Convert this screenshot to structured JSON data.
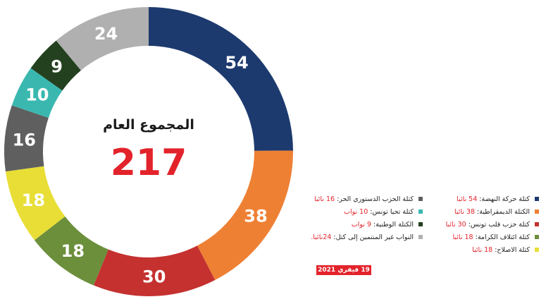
{
  "chart_data": {
    "type": "pie",
    "donut": true,
    "center_title": "المجموع العام",
    "center_total": "217",
    "slices": [
      {
        "label": "كتلة حركة النهضة",
        "value": 54,
        "color": "#1c3a6e"
      },
      {
        "label": "الكتلة الديمقراطية",
        "value": 38,
        "color": "#ee8034"
      },
      {
        "label": "كتلة حزب قلب تونس",
        "value": 30,
        "color": "#c4312f"
      },
      {
        "label": "كتلة ائتلاف الكرامة",
        "value": 18,
        "color": "#6c8f3c"
      },
      {
        "label": "كتلة الاصلاح",
        "value": 18,
        "color": "#e8de36"
      },
      {
        "label": "كتلة الحزب الدستوري الحر",
        "value": 16,
        "color": "#5f5f5f"
      },
      {
        "label": "كتلة تحيا تونس",
        "value": 10,
        "color": "#3ab8b0"
      },
      {
        "label": "الكتلة الوطنية",
        "value": 9,
        "color": "#23401f"
      },
      {
        "label": "النواب غير المنتمين إلى كتل",
        "value": 24,
        "color": "#b0b0b0"
      }
    ]
  },
  "legend": {
    "right": [
      {
        "text": "كتلة حركة النهضة: ",
        "num": "54 نائبا",
        "color": "#1c3a6e"
      },
      {
        "text": "الكتلة الديمقراطية: ",
        "num": "38 نائبا",
        "color": "#ee8034"
      },
      {
        "text": "كتلة حزب قلب تونس: ",
        "num": "30 نائبا",
        "color": "#c4312f"
      },
      {
        "text": "كتلة ائتلاف الكرامة: ",
        "num": "18 نائبا",
        "color": "#6c8f3c"
      },
      {
        "text": "كتلة الاصلاح: ",
        "num": "18 نائبا",
        "color": "#e8de36"
      }
    ],
    "left": [
      {
        "text": "كتلة الحزب الدستوري الحر: ",
        "num": "16 نائبا",
        "color": "#5f5f5f"
      },
      {
        "text": "كتلة تحيا تونس: ",
        "num": "10 نواب",
        "color": "#3ab8b0"
      },
      {
        "text": "الكتلة الوطنية: ",
        "num": "9 نواب",
        "color": "#23401f"
      },
      {
        "text": "النواب غير المنتمين إلى كتل: ",
        "num": "24نائبا.",
        "color": "#b0b0b0"
      }
    ]
  },
  "date_badge": "19 فيفري 2021"
}
